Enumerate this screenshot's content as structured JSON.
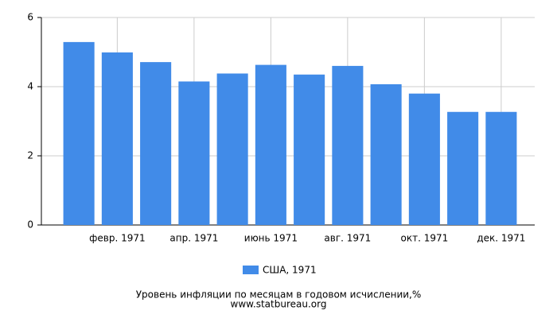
{
  "chart_data": {
    "type": "bar",
    "title": "Уровень инфляции по месяцам в годовом исчислении,%",
    "source": "www.statbureau.org",
    "categories": [
      null,
      "февр. 1971",
      null,
      "апр. 1971",
      null,
      "июнь 1971",
      null,
      "авг. 1971",
      null,
      "окт. 1971",
      null,
      "дек. 1971"
    ],
    "series": [
      {
        "name": "США, 1971",
        "color": "#418be8",
        "values": [
          5.29,
          4.99,
          4.71,
          4.15,
          4.38,
          4.63,
          4.35,
          4.6,
          4.07,
          3.8,
          3.27,
          3.27
        ]
      }
    ],
    "ylim": [
      0,
      6
    ],
    "yticks": [
      0,
      2,
      4,
      6
    ],
    "grid": true
  }
}
